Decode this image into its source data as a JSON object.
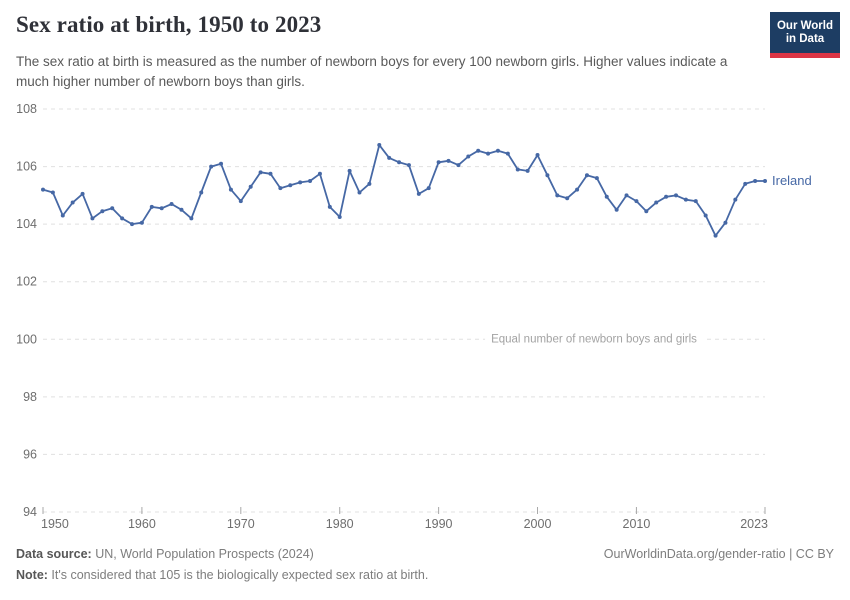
{
  "header": {
    "title": "Sex ratio at birth, 1950 to 2023",
    "subtitle": "The sex ratio at birth is measured as the number of newborn boys for every 100 newborn girls. Higher values indicate a much higher number of newborn boys than girls.",
    "logo": {
      "line1": "Our World",
      "line2": "in Data",
      "bg_color": "#1d3d63",
      "accent_color": "#dc3545"
    }
  },
  "chart_data": {
    "type": "line",
    "title": "Sex ratio at birth, 1950 to 2023",
    "xlabel": "",
    "ylabel": "",
    "xlim": [
      1950,
      2023
    ],
    "ylim": [
      94,
      108
    ],
    "x_ticks": [
      1950,
      1960,
      1970,
      1980,
      1990,
      2000,
      2010,
      2023
    ],
    "y_ticks": [
      94,
      96,
      98,
      100,
      102,
      104,
      106,
      108
    ],
    "grid": "horizontal-dashed",
    "legend": "end-of-line-label",
    "annotation": {
      "text": "Equal number of newborn boys and girls",
      "y": 100
    },
    "series": [
      {
        "name": "Ireland",
        "color": "#4668a5",
        "x_start": 1950,
        "x_step": 1,
        "values": [
          105.2,
          105.1,
          104.3,
          104.75,
          105.05,
          104.2,
          104.45,
          104.55,
          104.2,
          104.0,
          104.05,
          104.6,
          104.55,
          104.7,
          104.5,
          104.2,
          105.1,
          106.0,
          106.1,
          105.2,
          104.8,
          105.3,
          105.8,
          105.75,
          105.25,
          105.35,
          105.45,
          105.5,
          105.75,
          104.6,
          104.25,
          105.85,
          105.1,
          105.4,
          106.75,
          106.3,
          106.15,
          106.05,
          105.05,
          105.25,
          106.15,
          106.2,
          106.05,
          106.35,
          106.55,
          106.45,
          106.55,
          106.45,
          105.9,
          105.85,
          106.4,
          105.7,
          105.0,
          104.9,
          105.2,
          105.7,
          105.6,
          104.95,
          104.5,
          105.0,
          104.8,
          104.45,
          104.75,
          104.95,
          105.0,
          104.85,
          104.8,
          104.3,
          103.6,
          104.05,
          104.85,
          105.4,
          105.5,
          105.5
        ]
      }
    ]
  },
  "footer": {
    "source_label": "Data source:",
    "source_value": " UN, World Population Prospects (2024)",
    "note_label": "Note:",
    "note_value": " It's considered that 105 is the biologically expected sex ratio at birth.",
    "link": "OurWorldinData.org/gender-ratio | CC BY"
  }
}
